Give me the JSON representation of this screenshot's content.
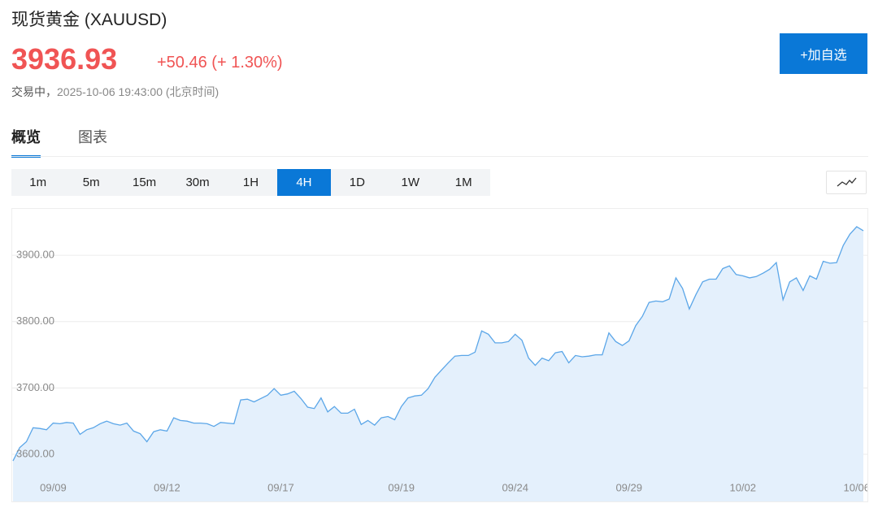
{
  "header": {
    "title": "现货黄金 (XAUUSD)",
    "price": "3936.93",
    "change": "+50.46",
    "change_pct": "(+ 1.30%)",
    "status": "交易中，",
    "timestamp": "2025-10-06 19:43:00",
    "timezone": "(北京时间)"
  },
  "watchlist_button": "+加自选",
  "tabs": [
    "概览",
    "图表"
  ],
  "active_tab": 0,
  "intervals": [
    "1m",
    "5m",
    "15m",
    "30m",
    "1H",
    "4H",
    "1D",
    "1W",
    "1M"
  ],
  "active_interval": 5,
  "chart_data": {
    "type": "area",
    "categories": [
      null,
      null,
      null,
      null,
      null,
      null,
      "09/09",
      null,
      null,
      null,
      null,
      null,
      null,
      null,
      null,
      null,
      null,
      null,
      null,
      null,
      null,
      null,
      null,
      "09/12",
      null,
      null,
      null,
      null,
      null,
      null,
      null,
      null,
      null,
      null,
      null,
      null,
      null,
      null,
      null,
      null,
      "09/17",
      null,
      null,
      null,
      null,
      null,
      null,
      null,
      null,
      null,
      null,
      null,
      null,
      null,
      null,
      null,
      null,
      null,
      "09/19",
      null,
      null,
      null,
      null,
      null,
      null,
      null,
      null,
      null,
      null,
      null,
      null,
      null,
      null,
      null,
      null,
      "09/24",
      null,
      null,
      null,
      null,
      null,
      null,
      null,
      null,
      null,
      null,
      null,
      null,
      null,
      null,
      null,
      null,
      "09/29",
      null,
      null,
      null,
      null,
      null,
      null,
      null,
      null,
      null,
      null,
      null,
      null,
      null,
      null,
      null,
      null,
      "10/02",
      null,
      null,
      null,
      null,
      null,
      null,
      null,
      null,
      null,
      null,
      null,
      null,
      null,
      null,
      null,
      null,
      "10/06",
      null
    ],
    "series": [
      {
        "color": "#5ba6e8",
        "fill": "#e4f0fc",
        "values": [
          3590,
          3610,
          3619,
          3640,
          3639,
          3637,
          3647,
          3646,
          3648,
          3647,
          3630,
          3637,
          3640,
          3646,
          3650,
          3646,
          3644,
          3647,
          3635,
          3631,
          3619,
          3634,
          3637,
          3635,
          3655,
          3651,
          3650,
          3647,
          3647,
          3646,
          3642,
          3648,
          3647,
          3646,
          3682,
          3683,
          3679,
          3684,
          3689,
          3699,
          3689,
          3691,
          3695,
          3684,
          3671,
          3669,
          3685,
          3664,
          3672,
          3662,
          3662,
          3668,
          3645,
          3651,
          3644,
          3655,
          3657,
          3652,
          3672,
          3685,
          3688,
          3689,
          3699,
          3716,
          3727,
          3738,
          3748,
          3749,
          3749,
          3754,
          3786,
          3781,
          3768,
          3768,
          3770,
          3781,
          3772,
          3745,
          3734,
          3745,
          3741,
          3753,
          3755,
          3738,
          3749,
          3747,
          3748,
          3750,
          3750,
          3783,
          3770,
          3764,
          3771,
          3794,
          3808,
          3829,
          3831,
          3830,
          3834,
          3866,
          3850,
          3819,
          3841,
          3860,
          3864,
          3864,
          3880,
          3884,
          3871,
          3869,
          3866,
          3868,
          3873,
          3879,
          3889,
          3833,
          3860,
          3866,
          3847,
          3869,
          3864,
          3891,
          3888,
          3889,
          3915,
          3932,
          3943,
          3937
        ]
      }
    ],
    "ylim": [
      3562,
      3970
    ],
    "yticks": [
      {
        "value": 3600,
        "label": "3600.00"
      },
      {
        "value": 3700,
        "label": "3700.00"
      },
      {
        "value": 3800,
        "label": "3800.00"
      },
      {
        "value": 3900,
        "label": "3900.00"
      }
    ],
    "grid": true
  }
}
